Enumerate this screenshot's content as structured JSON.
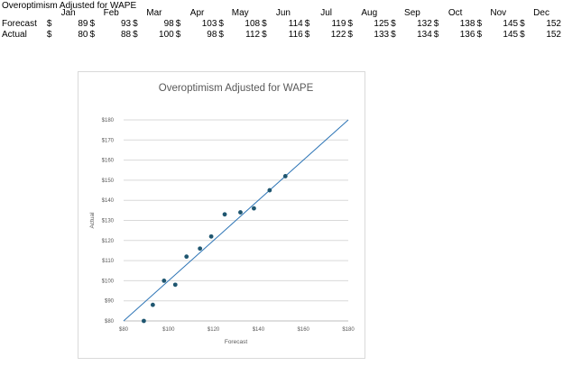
{
  "sheet": {
    "title": "Overoptimism Adjusted for WAPE",
    "currency_symbol": "$",
    "months": [
      "Jan",
      "Feb",
      "Mar",
      "Apr",
      "May",
      "Jun",
      "Jul",
      "Aug",
      "Sep",
      "Oct",
      "Nov",
      "Dec"
    ],
    "rows": [
      {
        "label": "Forecast",
        "values": [
          89,
          93,
          98,
          103,
          108,
          114,
          119,
          125,
          132,
          138,
          145,
          152
        ]
      },
      {
        "label": "Actual",
        "values": [
          80,
          88,
          100,
          98,
          112,
          116,
          122,
          133,
          134,
          136,
          145,
          152
        ]
      }
    ]
  },
  "chart_data": {
    "type": "scatter",
    "title": "Overoptimism Adjusted for WAPE",
    "xlabel": "Forecast",
    "ylabel": "Actual",
    "xlim": [
      80,
      180
    ],
    "ylim": [
      80,
      180
    ],
    "xticks": [
      80,
      100,
      120,
      140,
      160,
      180
    ],
    "yticks": [
      80,
      90,
      100,
      110,
      120,
      130,
      140,
      150,
      160,
      170,
      180
    ],
    "tick_prefix": "$",
    "grid": "horizontal",
    "points": [
      {
        "x": 89,
        "y": 80
      },
      {
        "x": 93,
        "y": 88
      },
      {
        "x": 98,
        "y": 100
      },
      {
        "x": 103,
        "y": 98
      },
      {
        "x": 108,
        "y": 112
      },
      {
        "x": 114,
        "y": 116
      },
      {
        "x": 119,
        "y": 122
      },
      {
        "x": 125,
        "y": 133
      },
      {
        "x": 132,
        "y": 134
      },
      {
        "x": 138,
        "y": 136
      },
      {
        "x": 145,
        "y": 145
      },
      {
        "x": 152,
        "y": 152
      }
    ],
    "reference_line": {
      "type": "y=x",
      "from": 80,
      "to": 180
    },
    "colors": {
      "points": "#1f5670",
      "line": "#2e75b6",
      "grid": "#d9d9d9",
      "text": "#595959"
    }
  }
}
